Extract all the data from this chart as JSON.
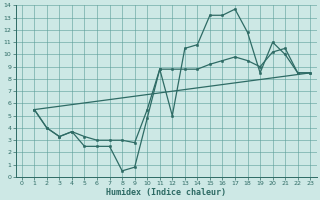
{
  "xlabel": "Humidex (Indice chaleur)",
  "bg_color": "#cde8e5",
  "line_color": "#2e6b65",
  "grid_color": "#5a9e98",
  "xlim": [
    -0.5,
    23.5
  ],
  "ylim": [
    0,
    14
  ],
  "xticks": [
    0,
    1,
    2,
    3,
    4,
    5,
    6,
    7,
    8,
    9,
    10,
    11,
    12,
    13,
    14,
    15,
    16,
    17,
    18,
    19,
    20,
    21,
    22,
    23
  ],
  "yticks": [
    0,
    1,
    2,
    3,
    4,
    5,
    6,
    7,
    8,
    9,
    10,
    11,
    12,
    13,
    14
  ],
  "line1": {
    "x": [
      1,
      2,
      3,
      4,
      5,
      6,
      7,
      8,
      9,
      10,
      11,
      12,
      13,
      14,
      15,
      16,
      17,
      18,
      19,
      20,
      21,
      22,
      23
    ],
    "y": [
      5.5,
      4.0,
      3.3,
      3.7,
      2.5,
      2.5,
      2.5,
      0.5,
      0.8,
      4.8,
      8.8,
      5.0,
      10.5,
      10.8,
      13.2,
      13.2,
      13.7,
      11.8,
      8.5,
      11.0,
      10.0,
      8.5,
      8.5
    ]
  },
  "line2": {
    "x": [
      1,
      2,
      3,
      4,
      5,
      6,
      7,
      8,
      9,
      10,
      11,
      12,
      13,
      14,
      15,
      16,
      17,
      18,
      19,
      20,
      21,
      22,
      23
    ],
    "y": [
      5.5,
      4.0,
      3.3,
      3.7,
      3.3,
      3.0,
      3.0,
      3.0,
      2.8,
      5.5,
      8.8,
      8.8,
      8.8,
      8.8,
      9.2,
      9.5,
      9.8,
      9.5,
      9.0,
      10.2,
      10.5,
      8.5,
      8.5
    ]
  },
  "line3": {
    "x": [
      1,
      23
    ],
    "y": [
      5.5,
      8.5
    ]
  }
}
